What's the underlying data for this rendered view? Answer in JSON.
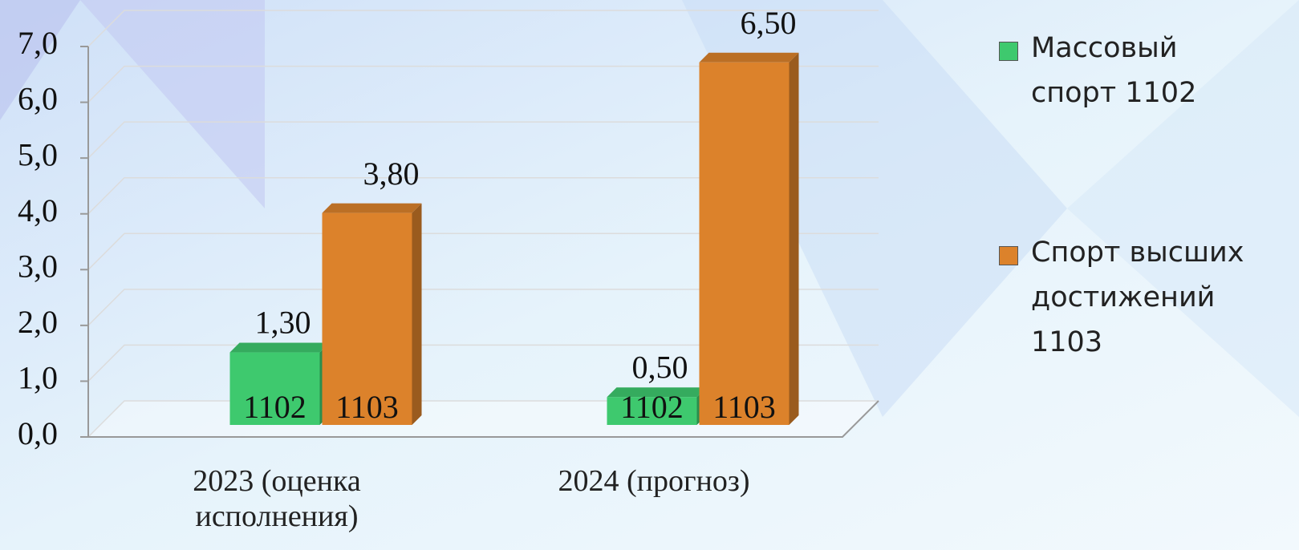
{
  "chart_data": {
    "type": "bar3d",
    "categories": [
      "2023 (оценка исполнения)",
      "2024 (прогноз)"
    ],
    "series": [
      {
        "name": "Массовый спорт 1102",
        "inner_label": "1102",
        "color": "#3ec96e",
        "values": [
          1.3,
          0.5
        ],
        "value_labels": [
          "1,30",
          "0,50"
        ]
      },
      {
        "name": "Спорт высших достижений 1103",
        "inner_label": "1103",
        "color": "#dc822b",
        "values": [
          3.8,
          6.5
        ],
        "value_labels": [
          "3,80",
          "6,50"
        ]
      }
    ],
    "ylim": [
      0,
      7
    ],
    "yticks": [
      {
        "value": 0,
        "label": "0,0"
      },
      {
        "value": 1,
        "label": "1,0"
      },
      {
        "value": 2,
        "label": "2,0"
      },
      {
        "value": 3,
        "label": "3,0"
      },
      {
        "value": 4,
        "label": "4,0"
      },
      {
        "value": 5,
        "label": "5,0"
      },
      {
        "value": 6,
        "label": "6,0"
      },
      {
        "value": 7,
        "label": "7,0"
      }
    ],
    "grid": true,
    "legend": "right"
  }
}
